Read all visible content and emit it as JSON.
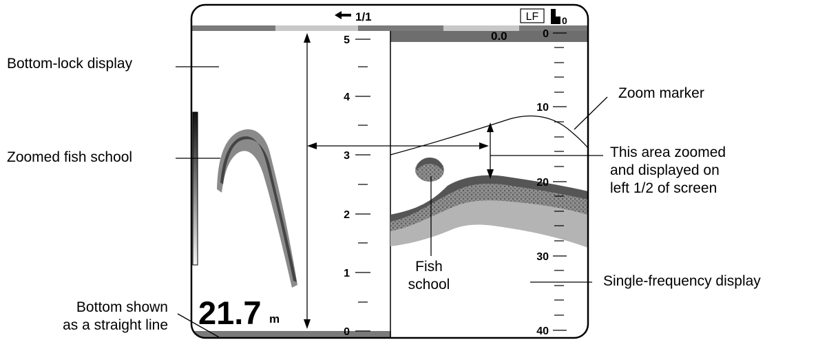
{
  "callouts": {
    "bottom_lock_display": "Bottom-lock display",
    "zoomed_fish_school": "Zoomed fish school",
    "bottom_straight_line": [
      "Bottom shown",
      "as a straight line"
    ],
    "zoom_marker": "Zoom marker",
    "area_zoomed": [
      "This area zoomed",
      "and displayed on",
      "left 1/2 of screen"
    ],
    "single_freq_display": "Single-frequency display",
    "fish_school": [
      "Fish",
      "school"
    ]
  },
  "screen": {
    "page_indicator": "1/1",
    "frequency_badge": "LF",
    "range_shift": "0",
    "shift_readout": "0.0",
    "depth_readout_value": "21.7",
    "depth_readout_unit": "m",
    "zoom_scale_labels": [
      "5",
      "4",
      "3",
      "2",
      "1",
      "0"
    ],
    "depth_scale_labels": [
      "0",
      "10",
      "20",
      "30",
      "40"
    ]
  },
  "colors": {
    "outline": "#000000",
    "bar_dark": "#7a7a7a",
    "bar_light": "#c8c8c8",
    "echo_dark": "#555555",
    "echo_mid": "#8a8a8a",
    "echo_light": "#b4b4b4"
  }
}
